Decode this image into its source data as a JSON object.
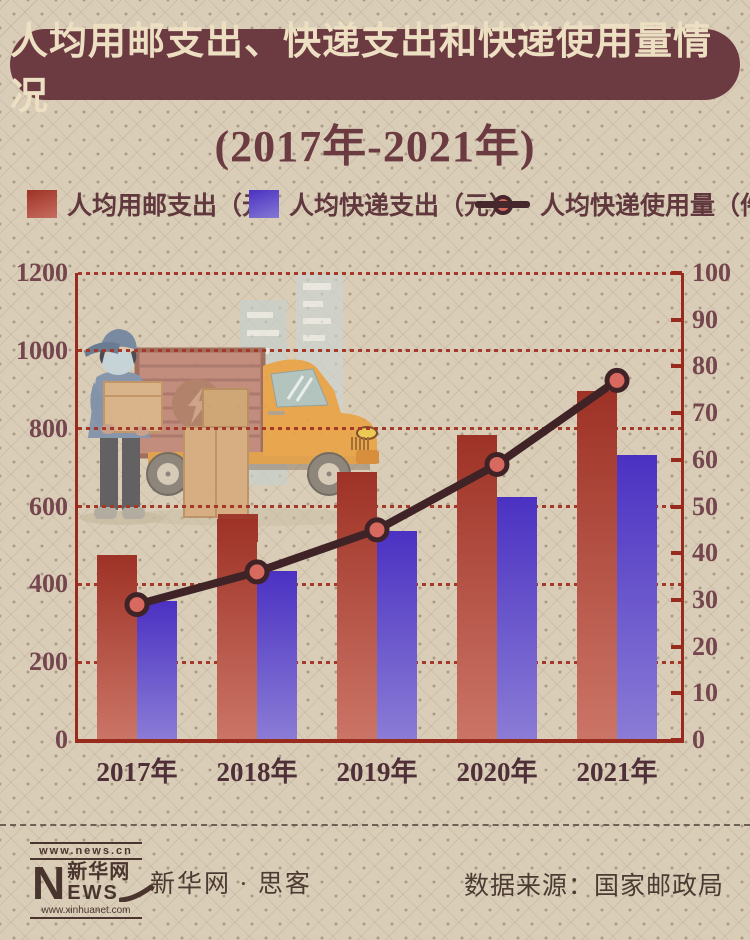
{
  "header": {
    "title": "人均用邮支出、快递支出和快递使用量情况",
    "subtitle": "(2017年-2021年)"
  },
  "legend": {
    "items": [
      {
        "label": "人均用邮支出（元）",
        "swatch": "red-gradient-square",
        "color_top": "#9e3226",
        "color_bottom": "#c76e60"
      },
      {
        "label": "人均快递支出（元）",
        "swatch": "blue-gradient-square",
        "color_top": "#4b31c2",
        "color_bottom": "#8478d4"
      },
      {
        "label": "人均快递使用量（件）",
        "swatch": "line-with-dot",
        "line_color": "#46272b",
        "marker_color": "#d4695e"
      }
    ]
  },
  "chart_data": {
    "type": "bar",
    "subtype": "grouped bars + line on secondary axis",
    "title": "人均用邮支出、快递支出和快递使用量情况 (2017年-2021年)",
    "categories": [
      "2017年",
      "2018年",
      "2019年",
      "2020年",
      "2021年"
    ],
    "series": [
      {
        "name": "人均用邮支出（元）",
        "type": "bar",
        "axis": "left",
        "color_top": "#9e3226",
        "color_bottom": "#cb7567",
        "values": [
          476,
          567,
          689,
          783,
          897
        ]
      },
      {
        "name": "人均快递支出（元）",
        "type": "bar",
        "axis": "left",
        "color_top": "#4b31c2",
        "color_bottom": "#8a7cd6",
        "values": [
          357,
          433,
          536,
          624,
          733
        ]
      },
      {
        "name": "人均快递使用量（件）",
        "type": "line",
        "axis": "right",
        "line_color": "#3f2327",
        "marker_fill": "#d7695e",
        "values": [
          29,
          36,
          45,
          59,
          77
        ]
      }
    ],
    "left_axis": {
      "min": 0,
      "max": 1200,
      "step": 200
    },
    "right_axis": {
      "min": 0,
      "max": 100,
      "step": 10
    },
    "grid": "horizontal dotted lines at left-axis steps",
    "legend_position": "top",
    "axis_color": "#982a1e",
    "grid_color": "#a53929"
  },
  "footer": {
    "logo": {
      "url_top": "www.news.cn",
      "n": "N",
      "cn": "新华网",
      "ews": "EWS",
      "url_bottom": "www.xinhuanet.com"
    },
    "brand": "新华网 · 思客",
    "source": "数据来源：国家邮政局"
  }
}
